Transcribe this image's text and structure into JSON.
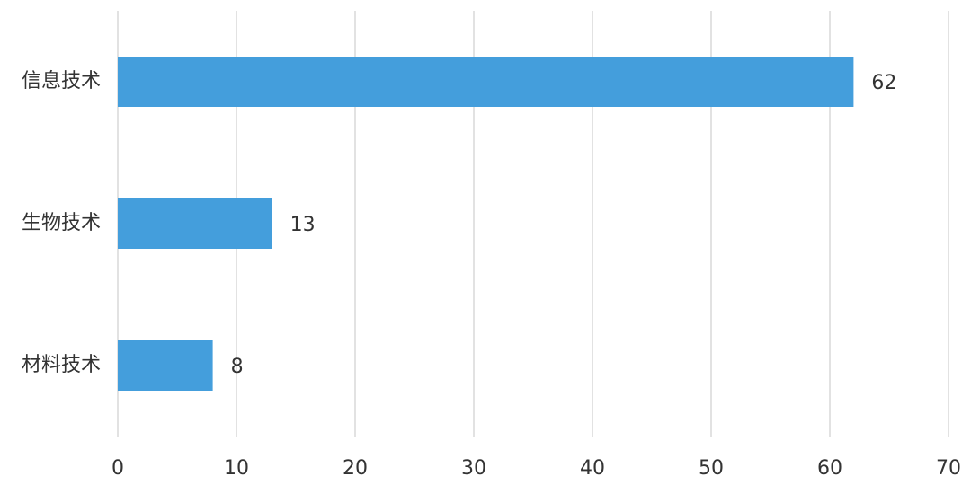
{
  "chart_data": {
    "type": "barh",
    "categories": [
      "信息技术",
      "生物技术",
      "材料技术"
    ],
    "values": [
      62,
      13,
      8
    ],
    "color": "#449edc",
    "xlim": [
      0,
      70
    ],
    "xticks": [
      0,
      10,
      20,
      30,
      40,
      50,
      60,
      70
    ],
    "grid": true
  }
}
